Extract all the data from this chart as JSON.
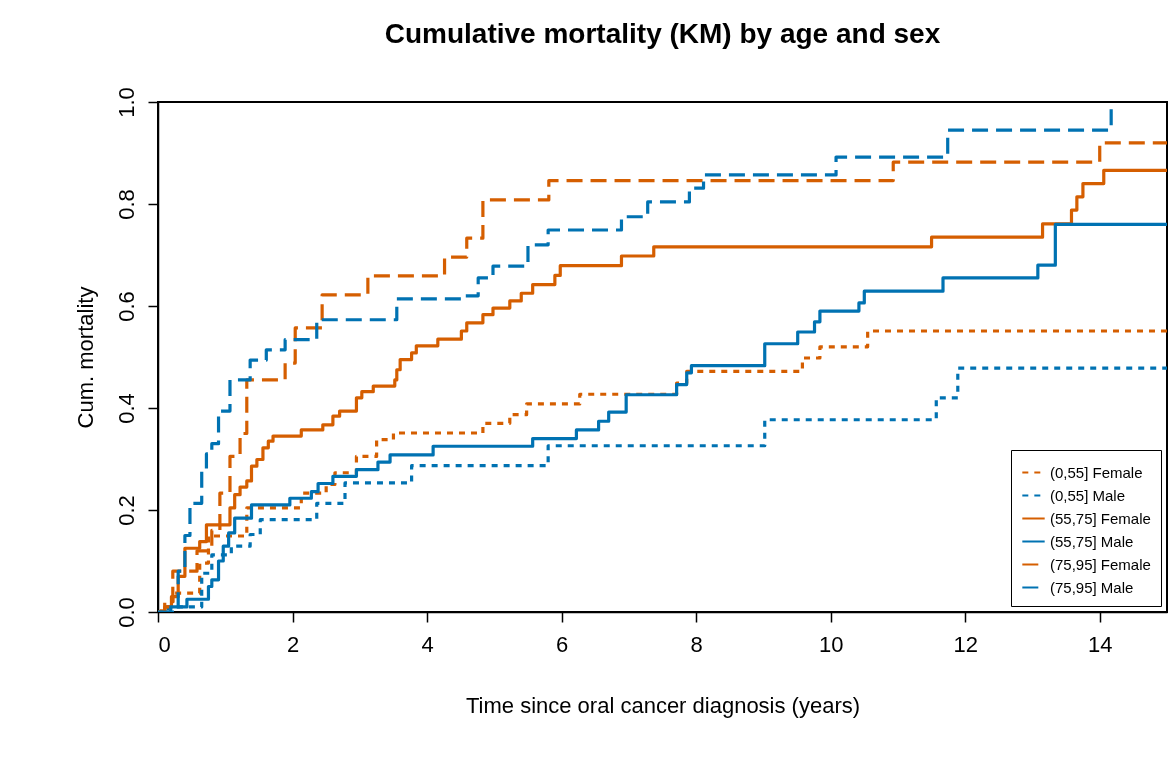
{
  "chart_data": {
    "type": "step",
    "title": "Cumulative mortality (KM) by age and sex",
    "xlabel": "Time since oral cancer diagnosis (years)",
    "ylabel": "Cum. mortality",
    "xlim": [
      0,
      15
    ],
    "ylim": [
      0,
      1
    ],
    "xticks": [
      0,
      2,
      4,
      6,
      8,
      10,
      12,
      14
    ],
    "yticks": [
      {
        "value": 0,
        "label": "0.0"
      },
      0.2,
      0.4,
      0.6,
      0.8,
      {
        "value": 1,
        "label": "1.0"
      }
    ],
    "legend": "bottom right",
    "series": [
      {
        "name": "(0,55] Female",
        "color": "#d55e00",
        "line_style": "dotted",
        "x": [
          0,
          0.05,
          0.22,
          0.62,
          0.75,
          1.32,
          2.13,
          2.5,
          2.63,
          2.95,
          3.25,
          3.5,
          4.83,
          5.23,
          5.48,
          6.27,
          7.71,
          7.86,
          9.58,
          9.84,
          9.91,
          10.55,
          15
        ],
        "values": [
          0,
          0.01,
          0.037,
          0.096,
          0.149,
          0.204,
          0.233,
          0.25,
          0.273,
          0.305,
          0.338,
          0.351,
          0.37,
          0.387,
          0.408,
          0.427,
          0.449,
          0.472,
          0.498,
          0.52,
          0.52,
          0.551,
          0.551
        ]
      },
      {
        "name": "(0,55] Male",
        "color": "#0072b2",
        "line_style": "dotted",
        "x": [
          0,
          0.15,
          0.65,
          0.8,
          1.09,
          1.37,
          1.52,
          2.36,
          2.78,
          3.77,
          5.8,
          9.02,
          11.57,
          11.89,
          15
        ],
        "values": [
          0,
          0.01,
          0.076,
          0.112,
          0.129,
          0.152,
          0.181,
          0.213,
          0.253,
          0.287,
          0.326,
          0.377,
          0.42,
          0.478,
          0.478
        ]
      },
      {
        "name": "(55,75] Female",
        "color": "#d55e00",
        "line_style": "solid",
        "x": [
          0,
          0.1,
          0.2,
          0.3,
          0.4,
          0.62,
          0.72,
          1.07,
          1.14,
          1.22,
          1.32,
          1.39,
          1.47,
          1.56,
          1.64,
          1.71,
          2.13,
          2.45,
          2.6,
          2.7,
          2.95,
          3.03,
          3.2,
          3.52,
          3.55,
          3.6,
          3.77,
          3.84,
          4.16,
          4.51,
          4.59,
          4.83,
          4.98,
          5.23,
          5.4,
          5.57,
          5.9,
          5.98,
          6.89,
          7.37,
          11.5,
          13.15,
          13.58,
          13.66,
          13.75,
          14.06,
          15
        ],
        "values": [
          0,
          0.01,
          0.03,
          0.07,
          0.125,
          0.138,
          0.171,
          0.204,
          0.23,
          0.245,
          0.257,
          0.286,
          0.299,
          0.322,
          0.335,
          0.345,
          0.357,
          0.367,
          0.384,
          0.394,
          0.42,
          0.432,
          0.443,
          0.455,
          0.475,
          0.495,
          0.508,
          0.522,
          0.535,
          0.551,
          0.567,
          0.583,
          0.596,
          0.61,
          0.625,
          0.642,
          0.66,
          0.679,
          0.698,
          0.716,
          0.735,
          0.761,
          0.788,
          0.814,
          0.84,
          0.866,
          0.866
        ]
      },
      {
        "name": "(55,75] Male",
        "color": "#0072b2",
        "line_style": "solid",
        "x": [
          0,
          0.19,
          0.43,
          0.75,
          0.8,
          0.9,
          0.97,
          1.05,
          1.14,
          1.39,
          1.96,
          2.28,
          2.38,
          2.6,
          2.95,
          3.27,
          3.45,
          4.09,
          5.57,
          6.22,
          6.55,
          6.7,
          6.96,
          7.71,
          7.86,
          7.93,
          9.02,
          9.51,
          9.76,
          9.84,
          10.42,
          10.5,
          11.67,
          13.08,
          13.34,
          15
        ],
        "values": [
          0,
          0.01,
          0.025,
          0.05,
          0.063,
          0.1,
          0.129,
          0.155,
          0.184,
          0.21,
          0.223,
          0.236,
          0.252,
          0.266,
          0.279,
          0.294,
          0.308,
          0.325,
          0.34,
          0.357,
          0.374,
          0.392,
          0.426,
          0.446,
          0.469,
          0.483,
          0.526,
          0.549,
          0.569,
          0.59,
          0.606,
          0.629,
          0.655,
          0.68,
          0.76,
          0.76
        ]
      },
      {
        "name": "(75,95] Female",
        "color": "#d55e00",
        "line_style": "dashed",
        "x": [
          0,
          0.1,
          0.22,
          0.58,
          0.8,
          0.92,
          1.07,
          1.22,
          1.32,
          1.89,
          2.04,
          2.44,
          3.12,
          4.26,
          4.59,
          4.83,
          5.81,
          10.93,
          14.0,
          15
        ],
        "values": [
          0,
          0.02,
          0.08,
          0.12,
          0.16,
          0.233,
          0.305,
          0.35,
          0.455,
          0.488,
          0.557,
          0.622,
          0.659,
          0.696,
          0.733,
          0.808,
          0.846,
          0.882,
          0.92,
          0.92
        ]
      },
      {
        "name": "(75,95] Male",
        "color": "#0072b2",
        "line_style": "dashed",
        "x": [
          0,
          0.3,
          0.4,
          0.475,
          0.65,
          0.72,
          0.8,
          0.9,
          1.07,
          1.37,
          1.61,
          1.89,
          2.36,
          3.55,
          4.51,
          4.76,
          4.98,
          5.5,
          5.8,
          6.89,
          7.28,
          7.9,
          8.11,
          10.08,
          11.74,
          14.17
        ],
        "values": [
          0,
          0.08,
          0.15,
          0.213,
          0.278,
          0.31,
          0.33,
          0.394,
          0.455,
          0.494,
          0.514,
          0.534,
          0.573,
          0.614,
          0.62,
          0.655,
          0.678,
          0.72,
          0.749,
          0.775,
          0.804,
          0.831,
          0.857,
          0.892,
          0.945,
          1.0
        ]
      }
    ]
  }
}
